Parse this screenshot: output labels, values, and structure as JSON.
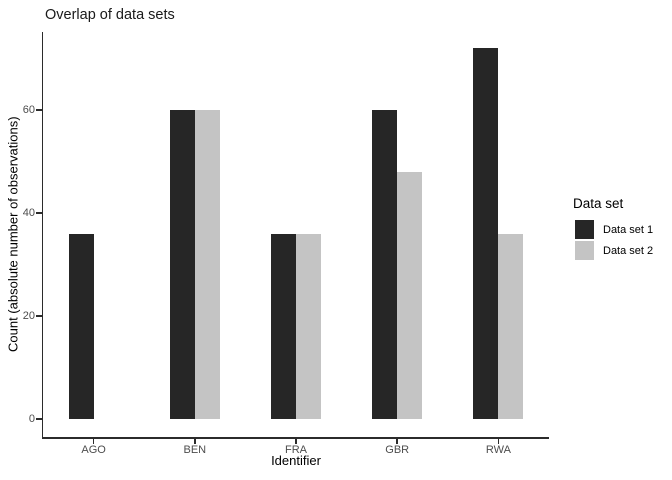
{
  "chart_data": {
    "type": "bar",
    "title": "Overlap of data sets",
    "xlabel": "Identifier",
    "ylabel": "Count (absolute number of observations)",
    "categories": [
      "AGO",
      "BEN",
      "FRA",
      "GBR",
      "RWA"
    ],
    "series": [
      {
        "name": "Data set 1",
        "color": "#262626",
        "values": [
          36,
          60,
          36,
          60,
          72
        ]
      },
      {
        "name": "Data set 2",
        "color": "#c4c4c4",
        "values": [
          0,
          60,
          36,
          48,
          36
        ]
      }
    ],
    "y_ticks": [
      0,
      20,
      40,
      60
    ],
    "ylim": [
      0,
      75
    ],
    "grid": false,
    "legend_title": "Data set",
    "legend_position": "right",
    "colors": {
      "axis": "#2b2b2b",
      "tick_label": "#4d4d4d",
      "title_text": "#1a1a1a"
    }
  }
}
